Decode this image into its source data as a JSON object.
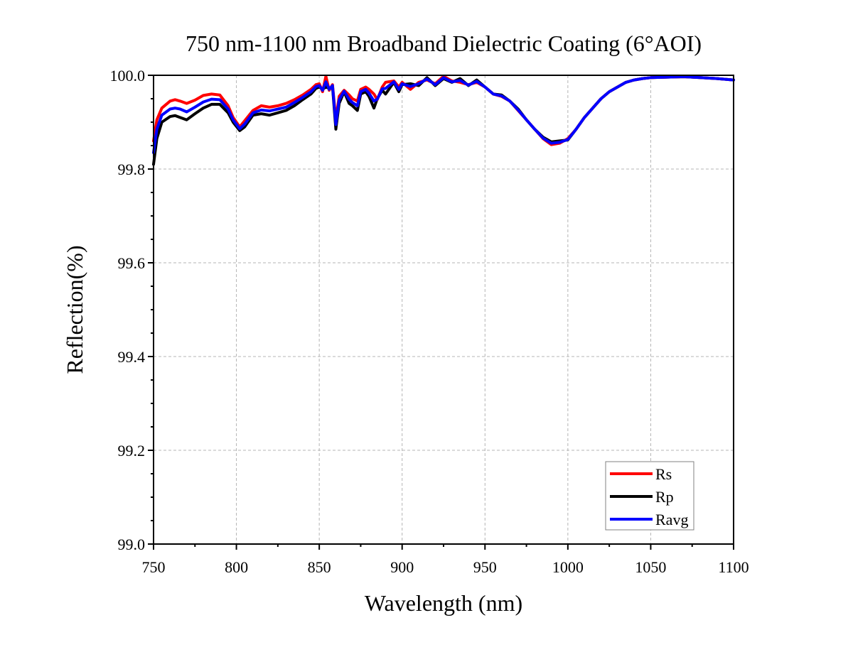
{
  "chart_data": {
    "type": "line",
    "title": "750 nm-1100 nm Broadband Dielectric Coating (6°AOI)",
    "xlabel": "Wavelength (nm)",
    "ylabel": "Reflection(%)",
    "xlim": [
      750,
      1100
    ],
    "ylim": [
      99.0,
      100.0
    ],
    "x_ticks": [
      750,
      800,
      850,
      900,
      950,
      1000,
      1050,
      1100
    ],
    "x_tick_labels": [
      "750",
      "800",
      "850",
      "900",
      "950",
      "1000",
      "1050",
      "1100"
    ],
    "y_ticks": [
      99.0,
      99.2,
      99.4,
      99.6,
      99.8,
      100.0
    ],
    "y_tick_labels": [
      "99.0",
      "99.2",
      "99.4",
      "99.6",
      "99.8",
      "100.0"
    ],
    "grid": true,
    "legend_position": "bottom-right",
    "series": [
      {
        "name": "Rs",
        "color": "#ff0000",
        "x": [
          750,
          752,
          755,
          760,
          763,
          766,
          770,
          775,
          780,
          785,
          790,
          795,
          798,
          802,
          805,
          810,
          815,
          820,
          825,
          830,
          835,
          840,
          845,
          848,
          850,
          852,
          854,
          856,
          858,
          860,
          862,
          865,
          868,
          870,
          873,
          875,
          878,
          880,
          883,
          885,
          888,
          890,
          895,
          898,
          900,
          905,
          910,
          915,
          918,
          920,
          925,
          930,
          935,
          940,
          945,
          950,
          955,
          960,
          965,
          970,
          975,
          980,
          985,
          990,
          995,
          1000,
          1005,
          1010,
          1015,
          1020,
          1025,
          1030,
          1035,
          1040,
          1045,
          1050,
          1060,
          1070,
          1080,
          1090,
          1100
        ],
        "values": [
          99.86,
          99.905,
          99.93,
          99.945,
          99.948,
          99.945,
          99.94,
          99.947,
          99.957,
          99.96,
          99.958,
          99.935,
          99.91,
          99.89,
          99.903,
          99.925,
          99.935,
          99.932,
          99.935,
          99.94,
          99.948,
          99.958,
          99.97,
          99.98,
          99.982,
          99.965,
          99.998,
          99.968,
          99.98,
          99.905,
          99.955,
          99.968,
          99.958,
          99.95,
          99.945,
          99.97,
          99.975,
          99.97,
          99.96,
          99.948,
          99.975,
          99.985,
          99.988,
          99.975,
          99.985,
          99.97,
          99.985,
          99.99,
          99.985,
          99.982,
          99.998,
          99.988,
          99.985,
          99.98,
          99.985,
          99.975,
          99.96,
          99.955,
          99.945,
          99.925,
          99.905,
          99.885,
          99.865,
          99.852,
          99.855,
          99.865,
          99.885,
          99.91,
          99.93,
          99.95,
          99.965,
          99.975,
          99.985,
          99.99,
          99.993,
          99.995,
          99.996,
          99.997,
          99.995,
          99.993,
          99.99
        ]
      },
      {
        "name": "Rp",
        "color": "#000000",
        "x": [
          750,
          752,
          755,
          760,
          763,
          766,
          770,
          775,
          780,
          785,
          790,
          795,
          798,
          802,
          805,
          810,
          815,
          820,
          825,
          830,
          835,
          840,
          845,
          848,
          850,
          852,
          854,
          856,
          858,
          860,
          862,
          865,
          868,
          870,
          873,
          875,
          878,
          880,
          883,
          885,
          888,
          890,
          895,
          898,
          900,
          905,
          910,
          915,
          918,
          920,
          925,
          930,
          935,
          940,
          945,
          950,
          955,
          960,
          965,
          970,
          975,
          980,
          985,
          990,
          995,
          1000,
          1005,
          1010,
          1015,
          1020,
          1025,
          1030,
          1035,
          1040,
          1045,
          1050,
          1060,
          1070,
          1080,
          1090,
          1100
        ],
        "values": [
          99.81,
          99.865,
          99.9,
          99.912,
          99.914,
          99.91,
          99.905,
          99.918,
          99.93,
          99.938,
          99.938,
          99.92,
          99.9,
          99.882,
          99.89,
          99.915,
          99.918,
          99.915,
          99.92,
          99.925,
          99.935,
          99.948,
          99.96,
          99.972,
          99.975,
          99.97,
          99.975,
          99.972,
          99.975,
          99.885,
          99.94,
          99.965,
          99.94,
          99.935,
          99.925,
          99.96,
          99.965,
          99.955,
          99.93,
          99.95,
          99.968,
          99.96,
          99.985,
          99.965,
          99.98,
          99.982,
          99.978,
          99.995,
          99.985,
          99.978,
          99.993,
          99.985,
          99.993,
          99.978,
          99.99,
          99.975,
          99.96,
          99.958,
          99.945,
          99.928,
          99.905,
          99.885,
          99.868,
          99.858,
          99.86,
          99.862,
          99.885,
          99.91,
          99.93,
          99.95,
          99.965,
          99.975,
          99.985,
          99.99,
          99.993,
          99.995,
          99.996,
          99.997,
          99.995,
          99.993,
          99.99
        ]
      },
      {
        "name": "Ravg",
        "color": "#0000ff",
        "x": [
          750,
          752,
          755,
          760,
          763,
          766,
          770,
          775,
          780,
          785,
          790,
          795,
          798,
          802,
          805,
          810,
          815,
          820,
          825,
          830,
          835,
          840,
          845,
          848,
          850,
          852,
          854,
          856,
          858,
          860,
          862,
          865,
          868,
          870,
          873,
          875,
          878,
          880,
          883,
          885,
          888,
          890,
          895,
          898,
          900,
          905,
          910,
          915,
          918,
          920,
          925,
          930,
          935,
          940,
          945,
          950,
          955,
          960,
          965,
          970,
          975,
          980,
          985,
          990,
          995,
          1000,
          1005,
          1010,
          1015,
          1020,
          1025,
          1030,
          1035,
          1040,
          1045,
          1050,
          1060,
          1070,
          1080,
          1090,
          1100
        ],
        "values": [
          99.835,
          99.885,
          99.915,
          99.928,
          99.93,
          99.928,
          99.922,
          99.932,
          99.943,
          99.949,
          99.948,
          99.928,
          99.905,
          99.886,
          99.896,
          99.92,
          99.926,
          99.924,
          99.928,
          99.932,
          99.942,
          99.953,
          99.965,
          99.976,
          99.978,
          99.968,
          99.986,
          99.97,
          99.978,
          99.895,
          99.948,
          99.966,
          99.949,
          99.942,
          99.935,
          99.965,
          99.97,
          99.962,
          99.945,
          99.949,
          99.971,
          99.972,
          99.986,
          99.97,
          99.982,
          99.976,
          99.982,
          99.992,
          99.985,
          99.98,
          99.995,
          99.986,
          99.989,
          99.979,
          99.987,
          99.975,
          99.96,
          99.956,
          99.945,
          99.926,
          99.905,
          99.885,
          99.866,
          99.855,
          99.857,
          99.863,
          99.885,
          99.91,
          99.93,
          99.95,
          99.965,
          99.975,
          99.985,
          99.99,
          99.993,
          99.995,
          99.996,
          99.997,
          99.995,
          99.993,
          99.99
        ]
      }
    ]
  }
}
